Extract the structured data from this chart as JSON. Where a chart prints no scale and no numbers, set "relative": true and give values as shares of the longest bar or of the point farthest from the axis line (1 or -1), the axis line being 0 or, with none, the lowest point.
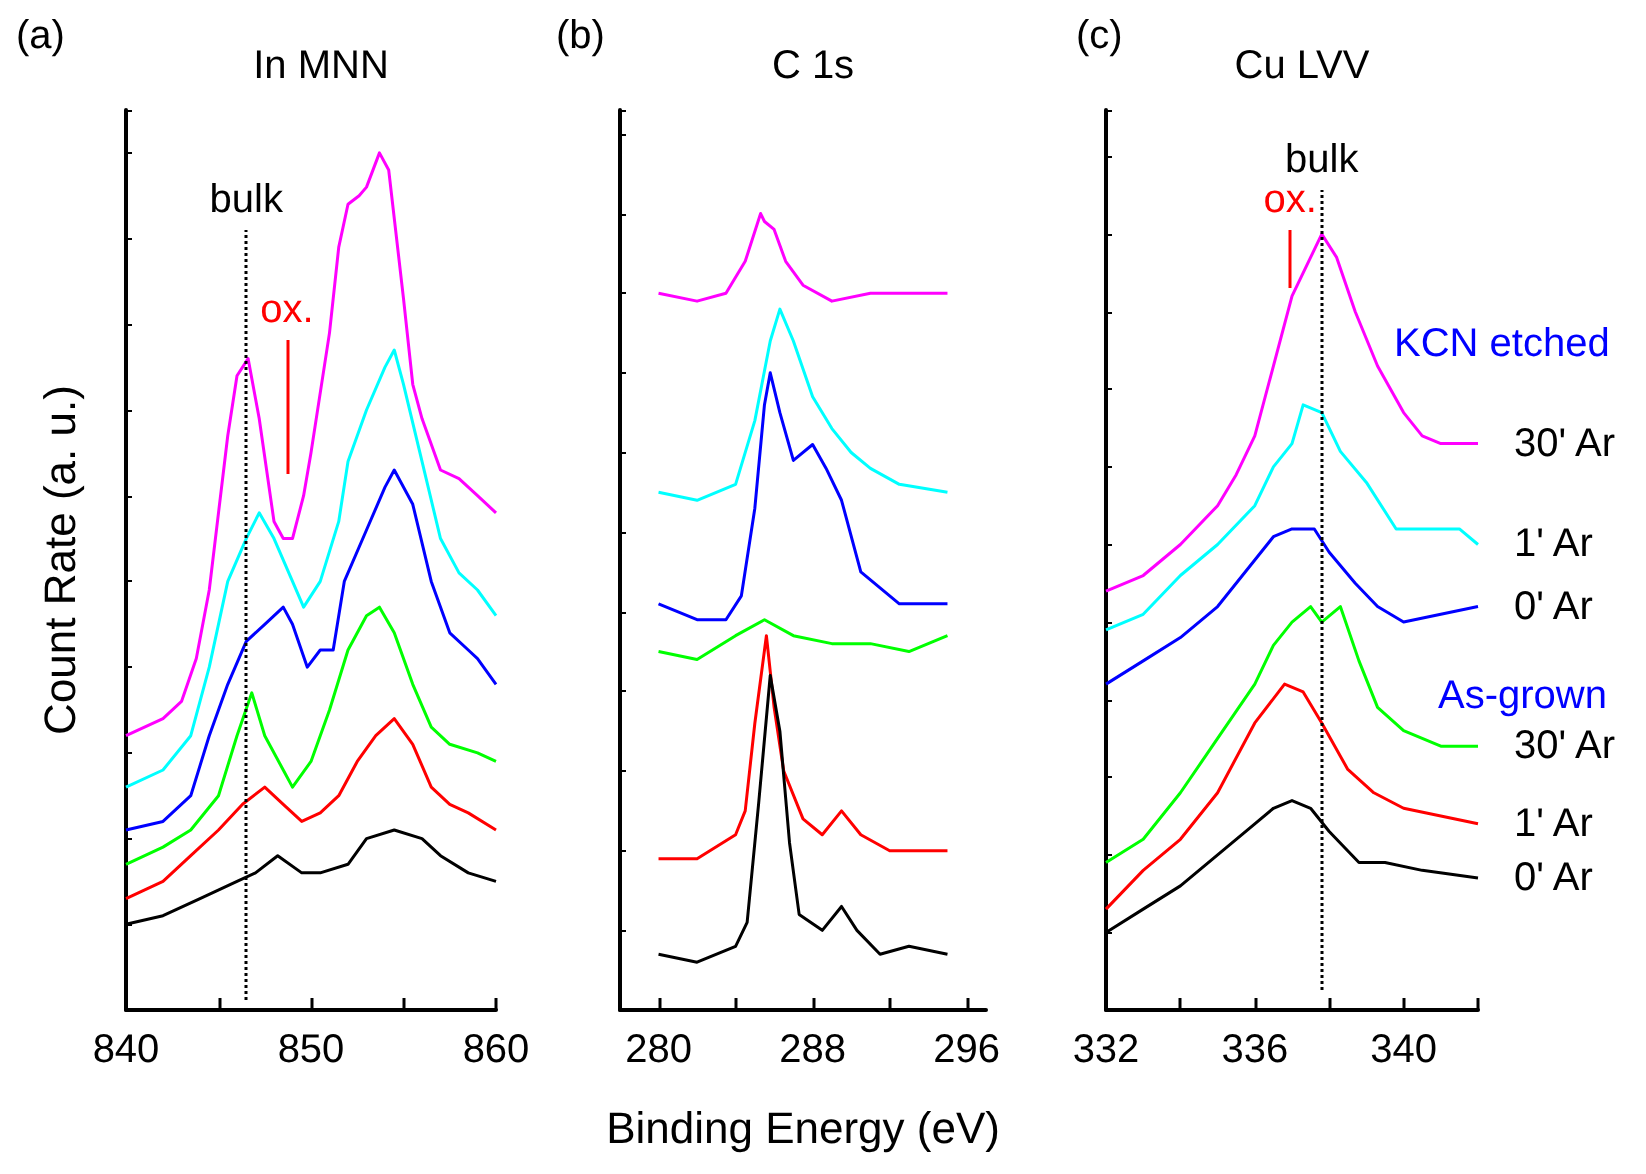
{
  "chart_data": [
    {
      "type": "line",
      "title": "In MNN",
      "ylabel": "Count Rate (a. u.)",
      "relative": true,
      "marker": "none",
      "annotations": [
        "(a)"
      ],
      "ref_lines": [
        {
          "axis": "x",
          "value": 846.5,
          "label": "bulk",
          "color": "#000000",
          "line_style": "dotted"
        },
        {
          "axis": "x",
          "value": 848.7,
          "label": "ox.",
          "color": "#ff0000",
          "line_style": "solid"
        }
      ],
      "xlim": [
        840,
        860
      ],
      "xticks": [
        840,
        {
          "value": 845,
          "label": null
        },
        850,
        {
          "value": 855,
          "label": null
        },
        860
      ],
      "series": [
        {
          "color": "#ff00ff",
          "x": [
            840,
            842,
            843,
            843.8,
            844.5,
            845,
            845.5,
            846,
            846.6,
            847.2,
            848,
            848.5,
            849,
            849.6,
            850,
            851,
            851.5,
            852,
            852.6,
            853,
            853.7,
            854.2,
            855,
            855.5,
            856,
            857,
            858,
            859,
            860
          ],
          "values": [
            0.32,
            0.34,
            0.36,
            0.41,
            0.49,
            0.58,
            0.67,
            0.74,
            0.76,
            0.69,
            0.57,
            0.55,
            0.55,
            0.6,
            0.65,
            0.79,
            0.89,
            0.94,
            0.95,
            0.96,
            1,
            0.98,
            0.83,
            0.73,
            0.69,
            0.63,
            0.62,
            0.6,
            0.58
          ]
        },
        {
          "color": "#00ffff",
          "x": [
            840,
            842,
            843.5,
            844.5,
            845.5,
            846.5,
            847.2,
            848,
            849,
            849.6,
            850.5,
            851.5,
            852,
            853,
            854,
            854.5,
            855,
            856,
            857,
            858,
            859,
            860
          ],
          "values": [
            0.26,
            0.28,
            0.32,
            0.4,
            0.5,
            0.55,
            0.58,
            0.55,
            0.5,
            0.47,
            0.5,
            0.57,
            0.64,
            0.7,
            0.75,
            0.77,
            0.73,
            0.64,
            0.55,
            0.51,
            0.49,
            0.46
          ]
        },
        {
          "color": "#0000ff",
          "x": [
            840,
            842,
            843.5,
            844.5,
            845.5,
            846.5,
            847.5,
            848.5,
            849,
            849.8,
            850.5,
            851.2,
            851.8,
            853,
            854,
            854.5,
            855.5,
            856.5,
            857.5,
            858.5,
            859,
            860
          ],
          "values": [
            0.21,
            0.22,
            0.25,
            0.32,
            0.38,
            0.43,
            0.45,
            0.47,
            0.45,
            0.4,
            0.42,
            0.42,
            0.5,
            0.56,
            0.61,
            0.63,
            0.59,
            0.5,
            0.44,
            0.42,
            0.41,
            0.38
          ]
        },
        {
          "color": "#00ff00",
          "x": [
            840,
            842,
            843.5,
            845,
            846,
            846.8,
            847.5,
            848.5,
            849,
            850,
            851,
            852,
            853,
            853.7,
            854.5,
            855.5,
            856.5,
            857.5,
            859,
            860
          ],
          "values": [
            0.17,
            0.19,
            0.21,
            0.25,
            0.32,
            0.37,
            0.32,
            0.28,
            0.26,
            0.29,
            0.35,
            0.42,
            0.46,
            0.47,
            0.44,
            0.38,
            0.33,
            0.31,
            0.3,
            0.29
          ]
        },
        {
          "color": "#ff0000",
          "x": [
            840,
            842,
            843.5,
            845,
            846.3,
            847.5,
            848.5,
            849.5,
            850.5,
            851.5,
            852.5,
            853.5,
            854.5,
            855.5,
            856.5,
            857.5,
            858.5,
            860
          ],
          "values": [
            0.13,
            0.15,
            0.18,
            0.21,
            0.24,
            0.26,
            0.24,
            0.22,
            0.23,
            0.25,
            0.29,
            0.32,
            0.34,
            0.31,
            0.26,
            0.24,
            0.23,
            0.21
          ]
        },
        {
          "color": "#000000",
          "x": [
            840,
            842,
            844,
            846,
            847,
            848.2,
            849.5,
            850.5,
            852,
            853,
            854.5,
            856,
            857,
            858.5,
            860
          ],
          "values": [
            0.1,
            0.11,
            0.13,
            0.15,
            0.16,
            0.18,
            0.16,
            0.16,
            0.17,
            0.2,
            0.21,
            0.2,
            0.18,
            0.16,
            0.15
          ]
        }
      ]
    },
    {
      "type": "line",
      "title": "C 1s",
      "xlabel": "Binding Energy (eV)",
      "relative": true,
      "marker": "none",
      "annotations": [
        "(b)"
      ],
      "xlim": [
        278,
        297
      ],
      "xticks": [
        280,
        {
          "value": 284,
          "label": null
        },
        288,
        {
          "value": 292,
          "label": null
        },
        296
      ],
      "series": [
        {
          "color": "#ff00ff",
          "x": [
            280,
            282,
            283.5,
            284.5,
            285.3,
            285.5,
            286,
            286.6,
            287.5,
            289,
            291,
            293,
            295
          ],
          "values": [
            0.9,
            0.89,
            0.9,
            0.94,
            1,
            0.99,
            0.98,
            0.94,
            0.91,
            0.89,
            0.9,
            0.9,
            0.9
          ]
        },
        {
          "color": "#00ffff",
          "x": [
            280,
            282,
            284,
            285,
            285.8,
            286.3,
            287,
            288,
            289,
            290,
            291,
            292.5,
            295
          ],
          "values": [
            0.65,
            0.64,
            0.66,
            0.74,
            0.84,
            0.88,
            0.84,
            0.77,
            0.73,
            0.7,
            0.68,
            0.66,
            0.65
          ]
        },
        {
          "color": "#0000ff",
          "x": [
            280,
            282,
            283.5,
            284.3,
            285,
            285.5,
            285.8,
            286.3,
            287,
            288,
            288.7,
            289.5,
            290.5,
            291.5,
            292.5,
            294,
            295
          ],
          "values": [
            0.51,
            0.49,
            0.49,
            0.52,
            0.63,
            0.76,
            0.8,
            0.75,
            0.69,
            0.71,
            0.68,
            0.64,
            0.55,
            0.53,
            0.51,
            0.51,
            0.51
          ]
        },
        {
          "color": "#00ff00",
          "x": [
            280,
            282,
            284,
            285.5,
            287,
            289,
            291,
            293,
            295
          ],
          "values": [
            0.45,
            0.44,
            0.47,
            0.49,
            0.47,
            0.46,
            0.46,
            0.45,
            0.47
          ]
        },
        {
          "color": "#ff0000",
          "x": [
            280,
            282,
            284,
            284.5,
            285,
            285.6,
            286,
            286.5,
            287.5,
            288.5,
            289.5,
            290.5,
            292,
            295
          ],
          "values": [
            0.19,
            0.19,
            0.22,
            0.25,
            0.36,
            0.47,
            0.38,
            0.3,
            0.24,
            0.22,
            0.25,
            0.22,
            0.2,
            0.2
          ]
        },
        {
          "color": "#000000",
          "x": [
            280,
            282,
            284,
            284.6,
            285.2,
            285.8,
            286.3,
            286.8,
            287.3,
            288.5,
            289.5,
            290.3,
            291.5,
            293,
            295
          ],
          "values": [
            0.07,
            0.06,
            0.08,
            0.11,
            0.26,
            0.42,
            0.35,
            0.21,
            0.12,
            0.1,
            0.13,
            0.1,
            0.07,
            0.08,
            0.07
          ]
        }
      ]
    },
    {
      "type": "line",
      "title": "Cu LVV",
      "relative": true,
      "marker": "none",
      "annotations": [
        "(c)",
        "KCN etched",
        "As-grown"
      ],
      "ref_lines": [
        {
          "axis": "x",
          "value": 337.8,
          "label": "bulk",
          "color": "#000000",
          "line_style": "dotted"
        },
        {
          "axis": "x",
          "value": 336.95,
          "label": "ox.",
          "color": "#ff0000",
          "line_style": "solid"
        }
      ],
      "xlim": [
        332,
        342
      ],
      "xticks": [
        332,
        {
          "value": 334,
          "label": null
        },
        336,
        {
          "value": 338,
          "label": null
        },
        340,
        {
          "value": 342,
          "label": null
        }
      ],
      "series": [
        {
          "name": "30' Ar",
          "color": "#ff00ff",
          "x": [
            332,
            333,
            334,
            335,
            335.5,
            336,
            336.5,
            337,
            337.5,
            337.8,
            338.2,
            338.7,
            339.3,
            340,
            340.5,
            341,
            342
          ],
          "values": [
            0.54,
            0.56,
            0.6,
            0.65,
            0.69,
            0.74,
            0.83,
            0.92,
            0.97,
            1,
            0.97,
            0.9,
            0.83,
            0.77,
            0.74,
            0.73,
            0.73
          ]
        },
        {
          "name": "1' Ar",
          "color": "#00ffff",
          "x": [
            332,
            333,
            334,
            335,
            336,
            336.5,
            337,
            337.3,
            337.8,
            338.3,
            339,
            339.8,
            340.5,
            341.5,
            342
          ],
          "values": [
            0.49,
            0.51,
            0.56,
            0.6,
            0.65,
            0.7,
            0.73,
            0.78,
            0.77,
            0.72,
            0.68,
            0.62,
            0.62,
            0.62,
            0.6
          ]
        },
        {
          "name": "0' Ar",
          "color": "#0000ff",
          "x": [
            332,
            333,
            334,
            335,
            336,
            336.5,
            337,
            337.6,
            338,
            338.7,
            339.3,
            340,
            341,
            342
          ],
          "values": [
            0.42,
            0.45,
            0.48,
            0.52,
            0.58,
            0.61,
            0.62,
            0.62,
            0.59,
            0.55,
            0.52,
            0.5,
            0.51,
            0.52
          ]
        },
        {
          "name": "30' Ar",
          "color": "#00ff00",
          "x": [
            332,
            333,
            334,
            335,
            336,
            336.5,
            337,
            337.5,
            337.8,
            338.3,
            338.8,
            339.3,
            340,
            341,
            342
          ],
          "values": [
            0.19,
            0.22,
            0.28,
            0.35,
            0.42,
            0.47,
            0.5,
            0.52,
            0.5,
            0.52,
            0.45,
            0.39,
            0.36,
            0.34,
            0.34
          ]
        },
        {
          "name": "1' Ar",
          "color": "#ff0000",
          "x": [
            332,
            333,
            334,
            335,
            336,
            336.8,
            337.3,
            337.8,
            338.5,
            339.2,
            340,
            341,
            342
          ],
          "values": [
            0.13,
            0.18,
            0.22,
            0.28,
            0.37,
            0.42,
            0.41,
            0.37,
            0.31,
            0.28,
            0.26,
            0.25,
            0.24
          ]
        },
        {
          "name": "0' Ar",
          "color": "#000000",
          "x": [
            332,
            333,
            334,
            335,
            336,
            336.5,
            337,
            337.5,
            338,
            338.8,
            339.5,
            340.5,
            342
          ],
          "values": [
            0.1,
            0.13,
            0.16,
            0.2,
            0.24,
            0.26,
            0.27,
            0.26,
            0.23,
            0.19,
            0.19,
            0.18,
            0.17
          ]
        }
      ]
    }
  ]
}
